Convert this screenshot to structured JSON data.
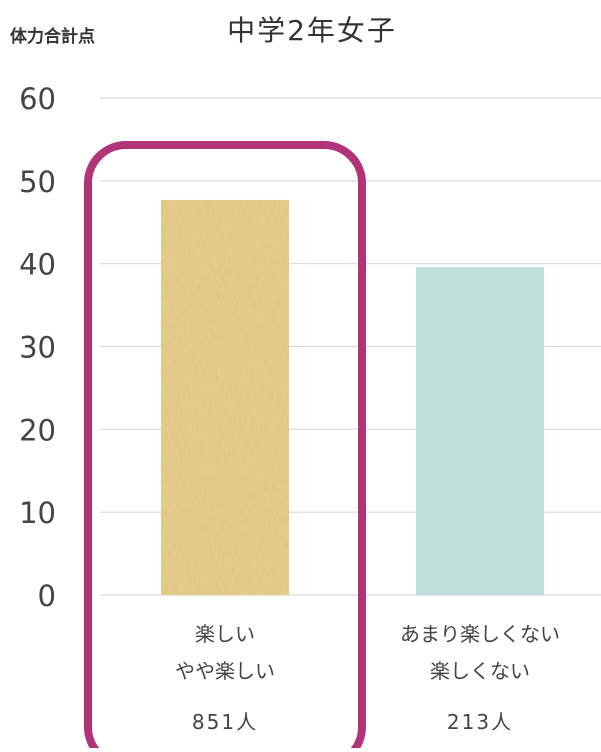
{
  "chart_data": {
    "type": "bar",
    "title": "中学2年女子",
    "ylabel": "体力合計点",
    "ylim": [
      0,
      60
    ],
    "yticks": [
      "0",
      "10",
      "20",
      "30",
      "40",
      "50",
      "60"
    ],
    "grid": true,
    "categories": [
      {
        "line1": "楽しい",
        "line2": "やや楽しい",
        "count": "851人"
      },
      {
        "line1": "あまり楽しくない",
        "line2": "楽しくない",
        "count": "213人"
      }
    ],
    "values": [
      47.7,
      39.6
    ],
    "highlight_index": 0
  },
  "colors": {
    "bar_1": "#e8cf8c",
    "bar_2": "#bfe0db",
    "highlight": "#b03477",
    "grid": "#d9d9d9",
    "text": "#444444"
  }
}
